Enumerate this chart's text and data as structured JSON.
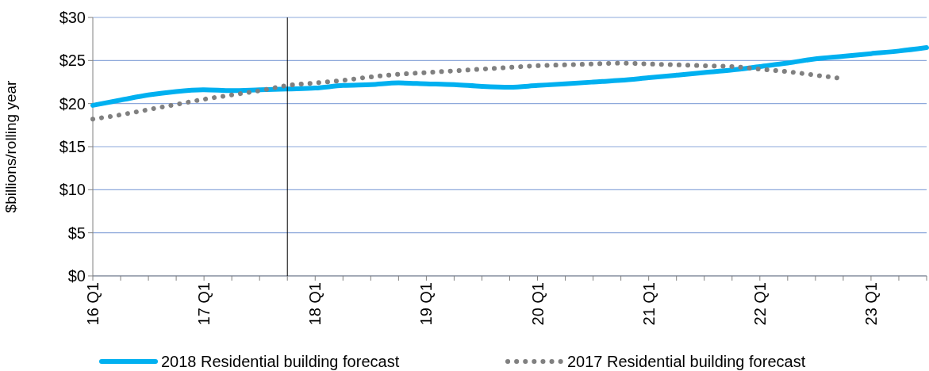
{
  "chart_data": {
    "type": "line",
    "ylabel": "$billions/rolling year",
    "categories": [
      "16 Q1",
      null,
      null,
      null,
      "17 Q1",
      null,
      null,
      null,
      "18 Q1",
      null,
      null,
      null,
      "19 Q1",
      null,
      null,
      null,
      "20 Q1",
      null,
      null,
      null,
      "21 Q1",
      null,
      null,
      null,
      "22 Q1",
      null,
      null,
      null,
      "23 Q1",
      null,
      null
    ],
    "ylim": [
      0,
      30
    ],
    "yticks": [
      {
        "value": 0,
        "label": "$0"
      },
      {
        "value": 5,
        "label": "$5"
      },
      {
        "value": 10,
        "label": "$10"
      },
      {
        "value": 15,
        "label": "$15"
      },
      {
        "value": 20,
        "label": "$20"
      },
      {
        "value": 25,
        "label": "$25"
      },
      {
        "value": 30,
        "label": "$30"
      }
    ],
    "grid": "y",
    "legend": "bottom",
    "series": [
      {
        "name": "2018 Residential building forecast",
        "color": "#00b0f0",
        "line_style": "solid",
        "values": [
          19.8,
          20.4,
          21.0,
          21.4,
          21.6,
          21.5,
          21.6,
          21.7,
          21.8,
          22.1,
          22.2,
          22.4,
          22.3,
          22.2,
          22.0,
          21.9,
          22.1,
          22.3,
          22.5,
          22.7,
          23.0,
          23.3,
          23.6,
          23.9,
          24.3,
          24.7,
          25.2,
          25.5,
          25.8,
          26.1,
          26.5
        ]
      },
      {
        "name": "2017 Residential building forecast",
        "color": "#808080",
        "line_style": "dotted",
        "values": [
          18.2,
          18.7,
          19.3,
          19.9,
          20.5,
          21.0,
          21.5,
          22.1,
          22.4,
          22.7,
          23.1,
          23.4,
          23.6,
          23.8,
          24.0,
          24.2,
          24.4,
          24.5,
          24.6,
          24.7,
          24.6,
          24.5,
          24.4,
          24.3,
          24.0,
          23.7,
          23.3,
          22.9,
          null,
          null,
          null
        ]
      }
    ]
  }
}
